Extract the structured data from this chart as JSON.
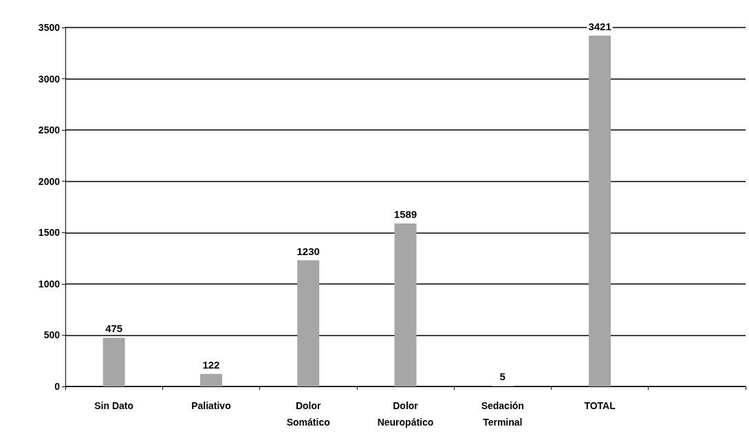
{
  "chart_data": {
    "type": "bar",
    "categories": [
      "Sin Dato",
      "Paliativo",
      "Dolor\nSomático",
      "Dolor\nNeuropático",
      "Sedación\nTerminal",
      "TOTAL",
      null
    ],
    "values": [
      475,
      122,
      1230,
      1589,
      5,
      3421,
      null
    ],
    "color": "#a6a6a6",
    "data_labels": true,
    "grid": "y",
    "ylim": [
      0,
      3500
    ],
    "yticks": [
      0,
      500,
      1000,
      1500,
      2000,
      2500,
      3000,
      3500
    ]
  }
}
